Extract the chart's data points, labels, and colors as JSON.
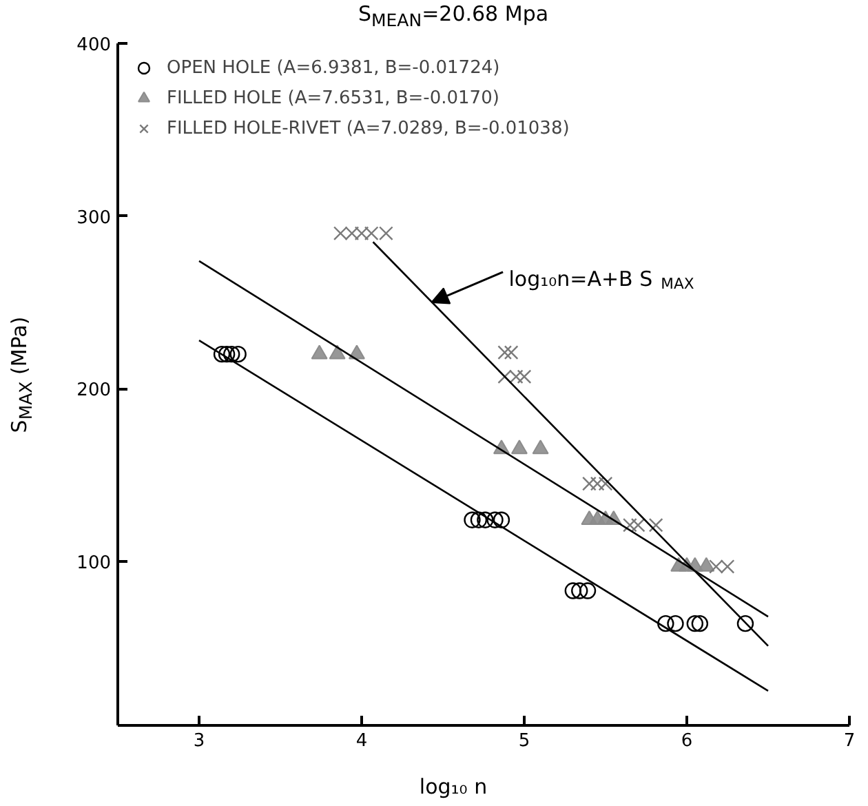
{
  "chart_data": {
    "type": "scatter",
    "title": "S$_{MEAN}$=20.68 Mpa",
    "xlabel": "log₁₀ n",
    "ylabel": "S$_{MAX}$ (MPa)",
    "xlim": [
      2.5,
      7
    ],
    "ylim": [
      5,
      400
    ],
    "xticks": [
      3,
      4,
      5,
      6,
      7
    ],
    "yticks": [
      100,
      200,
      300,
      400
    ],
    "grid": false,
    "legend": "top left",
    "series": [
      {
        "name": "OPEN HOLE (A=6.9381, B=-0.01724)",
        "marker": "circle",
        "color": "#000000",
        "x": [
          3.14,
          3.17,
          3.2,
          3.24,
          4.68,
          4.72,
          4.76,
          4.82,
          4.86,
          5.3,
          5.34,
          5.39,
          5.87,
          5.93,
          6.05,
          6.08,
          6.36
        ],
        "values": [
          220,
          220,
          220,
          220,
          124,
          124,
          124,
          124,
          124,
          83,
          83,
          83,
          64,
          64,
          64,
          64,
          64
        ]
      },
      {
        "name": "FILLED HOLE (A=7.6531, B=-0.0170)",
        "marker": "triangle",
        "color": "#8c8c8c",
        "x": [
          3.74,
          3.85,
          3.97,
          4.86,
          4.97,
          5.1,
          5.4,
          5.45,
          5.5,
          5.55,
          5.95,
          6.0,
          6.05,
          6.12
        ],
        "values": [
          220,
          220,
          220,
          165,
          165,
          165,
          124,
          124,
          124,
          124,
          97,
          97,
          97,
          97
        ]
      },
      {
        "name": "FILLED HOLE-RIVET (A=7.0289, B=-0.01038)",
        "marker": "cross",
        "color": "#7a7a7a",
        "x": [
          3.87,
          3.94,
          4.0,
          4.06,
          4.15,
          4.88,
          4.92,
          4.88,
          4.95,
          5.0,
          5.4,
          5.45,
          5.5,
          5.65,
          5.7,
          5.81,
          6.18,
          6.25
        ],
        "values": [
          290,
          290,
          290,
          290,
          290,
          221,
          221,
          207,
          207,
          207,
          145,
          145,
          145,
          121,
          121,
          121,
          97,
          97
        ]
      },
      {
        "type": "line",
        "color": "#000000",
        "x": [
          3,
          6.5
        ],
        "values": [
          228,
          25
        ]
      },
      {
        "type": "line",
        "color": "#000000",
        "x": [
          3,
          6.5
        ],
        "values": [
          274,
          68
        ]
      },
      {
        "type": "line",
        "color": "#000000",
        "x": [
          4.07,
          6.5
        ],
        "values": [
          285,
          51
        ]
      }
    ],
    "annotations": [
      {
        "text": "log₁₀n=A+B S$_{MAX}$",
        "x": 4.43,
        "y": 250
      }
    ]
  }
}
